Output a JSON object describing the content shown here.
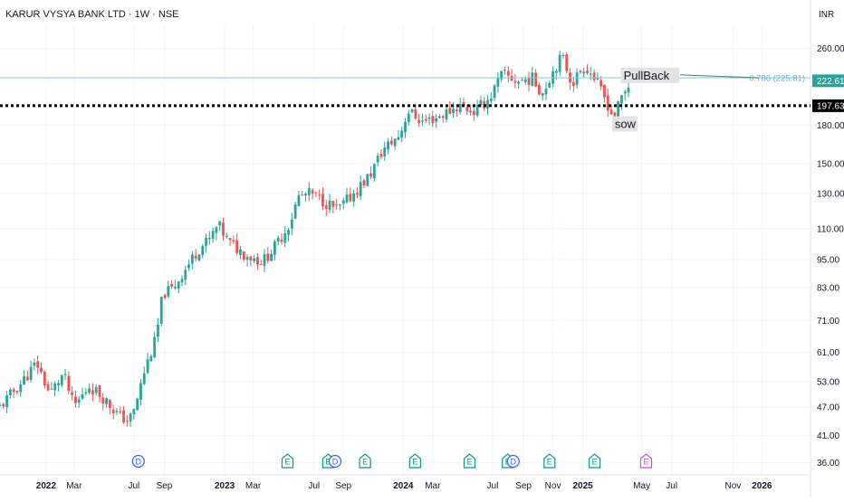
{
  "header": {
    "title": "KARUR VYSYA BANK LTD · 1W · NSE",
    "currency": "INR"
  },
  "colors": {
    "up": "#26a69a",
    "down": "#ef5350",
    "grid": "#f0f3fa",
    "axis_text": "#131722",
    "fib_line": "#7ec8e3",
    "price_badge": "#26a69a",
    "level_badge": "#000000",
    "dividend": "#2962ff",
    "earnings": "#089981",
    "future_earnings": "#e040fb"
  },
  "chart_data": {
    "type": "candlestick",
    "title": "KARUR VYSYA BANK LTD · 1W · NSE",
    "scale": "log",
    "ylim": [
      34,
      290
    ],
    "x_range": [
      "2021-10-01",
      "2026-04-10"
    ],
    "y_ticks": [
      "260.00",
      "180.00",
      "150.00",
      "130.00",
      "110.00",
      "95.00",
      "83.00",
      "71.00",
      "61.00",
      "53.00",
      "47.00",
      "41.00",
      "36.00"
    ],
    "x_ticks": [
      {
        "label": "2022",
        "date": "2022-01-03"
      },
      {
        "label": "Mar",
        "date": "2022-03-01"
      },
      {
        "label": "Jul",
        "date": "2022-07-01"
      },
      {
        "label": "Sep",
        "date": "2022-09-01"
      },
      {
        "label": "2023",
        "date": "2023-01-02"
      },
      {
        "label": "Mar",
        "date": "2023-03-01"
      },
      {
        "label": "Jul",
        "date": "2023-07-03"
      },
      {
        "label": "Sep",
        "date": "2023-09-01"
      },
      {
        "label": "2024",
        "date": "2024-01-01"
      },
      {
        "label": "Mar",
        "date": "2024-03-01"
      },
      {
        "label": "Jul",
        "date": "2024-07-01"
      },
      {
        "label": "Sep",
        "date": "2024-09-02"
      },
      {
        "label": "Nov",
        "date": "2024-11-01"
      },
      {
        "label": "2025",
        "date": "2025-01-01"
      },
      {
        "label": "May",
        "date": "2025-05-01"
      },
      {
        "label": "Jul",
        "date": "2025-07-01"
      },
      {
        "label": "Nov",
        "date": "2025-11-03"
      },
      {
        "label": "2026",
        "date": "2026-01-01"
      }
    ],
    "anchors": [
      {
        "date": "2021-10-01",
        "price": 47
      },
      {
        "date": "2021-11-15",
        "price": 53
      },
      {
        "date": "2021-12-15",
        "price": 58
      },
      {
        "date": "2022-01-10",
        "price": 50
      },
      {
        "date": "2022-02-07",
        "price": 55
      },
      {
        "date": "2022-03-01",
        "price": 47
      },
      {
        "date": "2022-04-01",
        "price": 52
      },
      {
        "date": "2022-05-01",
        "price": 49
      },
      {
        "date": "2022-06-01",
        "price": 45
      },
      {
        "date": "2022-06-20",
        "price": 44
      },
      {
        "date": "2022-07-01",
        "price": 46
      },
      {
        "date": "2022-07-25",
        "price": 57
      },
      {
        "date": "2022-08-15",
        "price": 65
      },
      {
        "date": "2022-08-29",
        "price": 81
      },
      {
        "date": "2022-09-15",
        "price": 82
      },
      {
        "date": "2022-10-15",
        "price": 91
      },
      {
        "date": "2022-11-10",
        "price": 100
      },
      {
        "date": "2022-12-01",
        "price": 104
      },
      {
        "date": "2022-12-20",
        "price": 112
      },
      {
        "date": "2023-01-10",
        "price": 103
      },
      {
        "date": "2023-02-15",
        "price": 97
      },
      {
        "date": "2023-03-20",
        "price": 94
      },
      {
        "date": "2023-04-15",
        "price": 101
      },
      {
        "date": "2023-05-15",
        "price": 113
      },
      {
        "date": "2023-06-01",
        "price": 128
      },
      {
        "date": "2023-06-25",
        "price": 130
      },
      {
        "date": "2023-07-25",
        "price": 125
      },
      {
        "date": "2023-08-20",
        "price": 120
      },
      {
        "date": "2023-09-15",
        "price": 128
      },
      {
        "date": "2023-10-25",
        "price": 142
      },
      {
        "date": "2023-11-20",
        "price": 160
      },
      {
        "date": "2023-12-25",
        "price": 172
      },
      {
        "date": "2024-01-10",
        "price": 193
      },
      {
        "date": "2024-02-10",
        "price": 183
      },
      {
        "date": "2024-03-15",
        "price": 188
      },
      {
        "date": "2024-04-25",
        "price": 198
      },
      {
        "date": "2024-05-25",
        "price": 192
      },
      {
        "date": "2024-06-25",
        "price": 205
      },
      {
        "date": "2024-07-20",
        "price": 230
      },
      {
        "date": "2024-08-20",
        "price": 222
      },
      {
        "date": "2024-09-20",
        "price": 225
      },
      {
        "date": "2024-10-10",
        "price": 210
      },
      {
        "date": "2024-11-05",
        "price": 238
      },
      {
        "date": "2024-11-20",
        "price": 250
      },
      {
        "date": "2024-12-10",
        "price": 220
      },
      {
        "date": "2025-01-05",
        "price": 240
      },
      {
        "date": "2025-01-25",
        "price": 225
      },
      {
        "date": "2025-02-20",
        "price": 200
      },
      {
        "date": "2025-03-05",
        "price": 185
      },
      {
        "date": "2025-03-20",
        "price": 205
      },
      {
        "date": "2025-04-10",
        "price": 222.61
      }
    ],
    "lines": [
      {
        "label": "0.786 (225.81)",
        "value": 225.81,
        "price_label": "222.61",
        "last_close": 222.61
      },
      {
        "label": "197.63",
        "value": 197.63,
        "style": "dotted"
      }
    ],
    "annotations": [
      {
        "text": "PullBack",
        "date": "2025-03-25",
        "price": 227
      },
      {
        "text": "sow",
        "date": "2025-03-07",
        "price": 180
      }
    ],
    "events": [
      {
        "type": "D",
        "date": "2022-07-10"
      },
      {
        "type": "E",
        "date": "2023-05-10"
      },
      {
        "type": "E",
        "date": "2023-08-01"
      },
      {
        "type": "D",
        "date": "2023-08-15"
      },
      {
        "type": "E",
        "date": "2023-10-15"
      },
      {
        "type": "E",
        "date": "2024-01-25"
      },
      {
        "type": "E",
        "date": "2024-05-15"
      },
      {
        "type": "E",
        "date": "2024-08-01"
      },
      {
        "type": "D",
        "date": "2024-08-12"
      },
      {
        "type": "E",
        "date": "2024-10-25"
      },
      {
        "type": "E",
        "date": "2025-01-25"
      },
      {
        "type": "E",
        "date": "2025-05-10",
        "future": true
      }
    ]
  }
}
